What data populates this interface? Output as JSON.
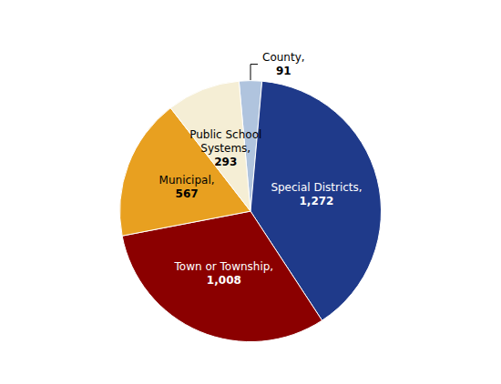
{
  "chart_data": {
    "type": "pie",
    "categories": [
      "County,",
      "Special Districts,",
      "Town or Township,",
      "Municipal,",
      "Public School Systems,"
    ],
    "values": [
      91,
      1272,
      1008,
      567,
      293
    ],
    "value_labels": [
      "91",
      "1,272",
      "1,008",
      "567",
      "293"
    ],
    "colors": [
      "#b0c4de",
      "#1f3a8a",
      "#8b0000",
      "#e8a020",
      "#f5eed5"
    ],
    "data_labels": true
  }
}
